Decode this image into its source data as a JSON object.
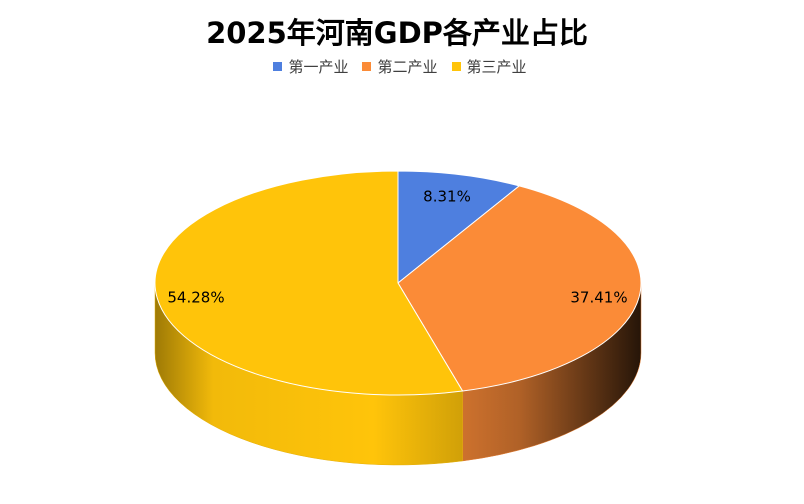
{
  "chart_data": {
    "type": "pie",
    "title": "2025年河南GDP各产业占比",
    "categories": [
      "第一产业",
      "第二产业",
      "第三产业"
    ],
    "values": [
      8.31,
      37.41,
      54.28
    ],
    "data_labels": [
      "8.31%",
      "37.41%",
      "54.28%"
    ],
    "colors": [
      "#4E7FDF",
      "#FB8B37",
      "#FFC40A"
    ],
    "legend_position": "top",
    "style": "3d"
  }
}
